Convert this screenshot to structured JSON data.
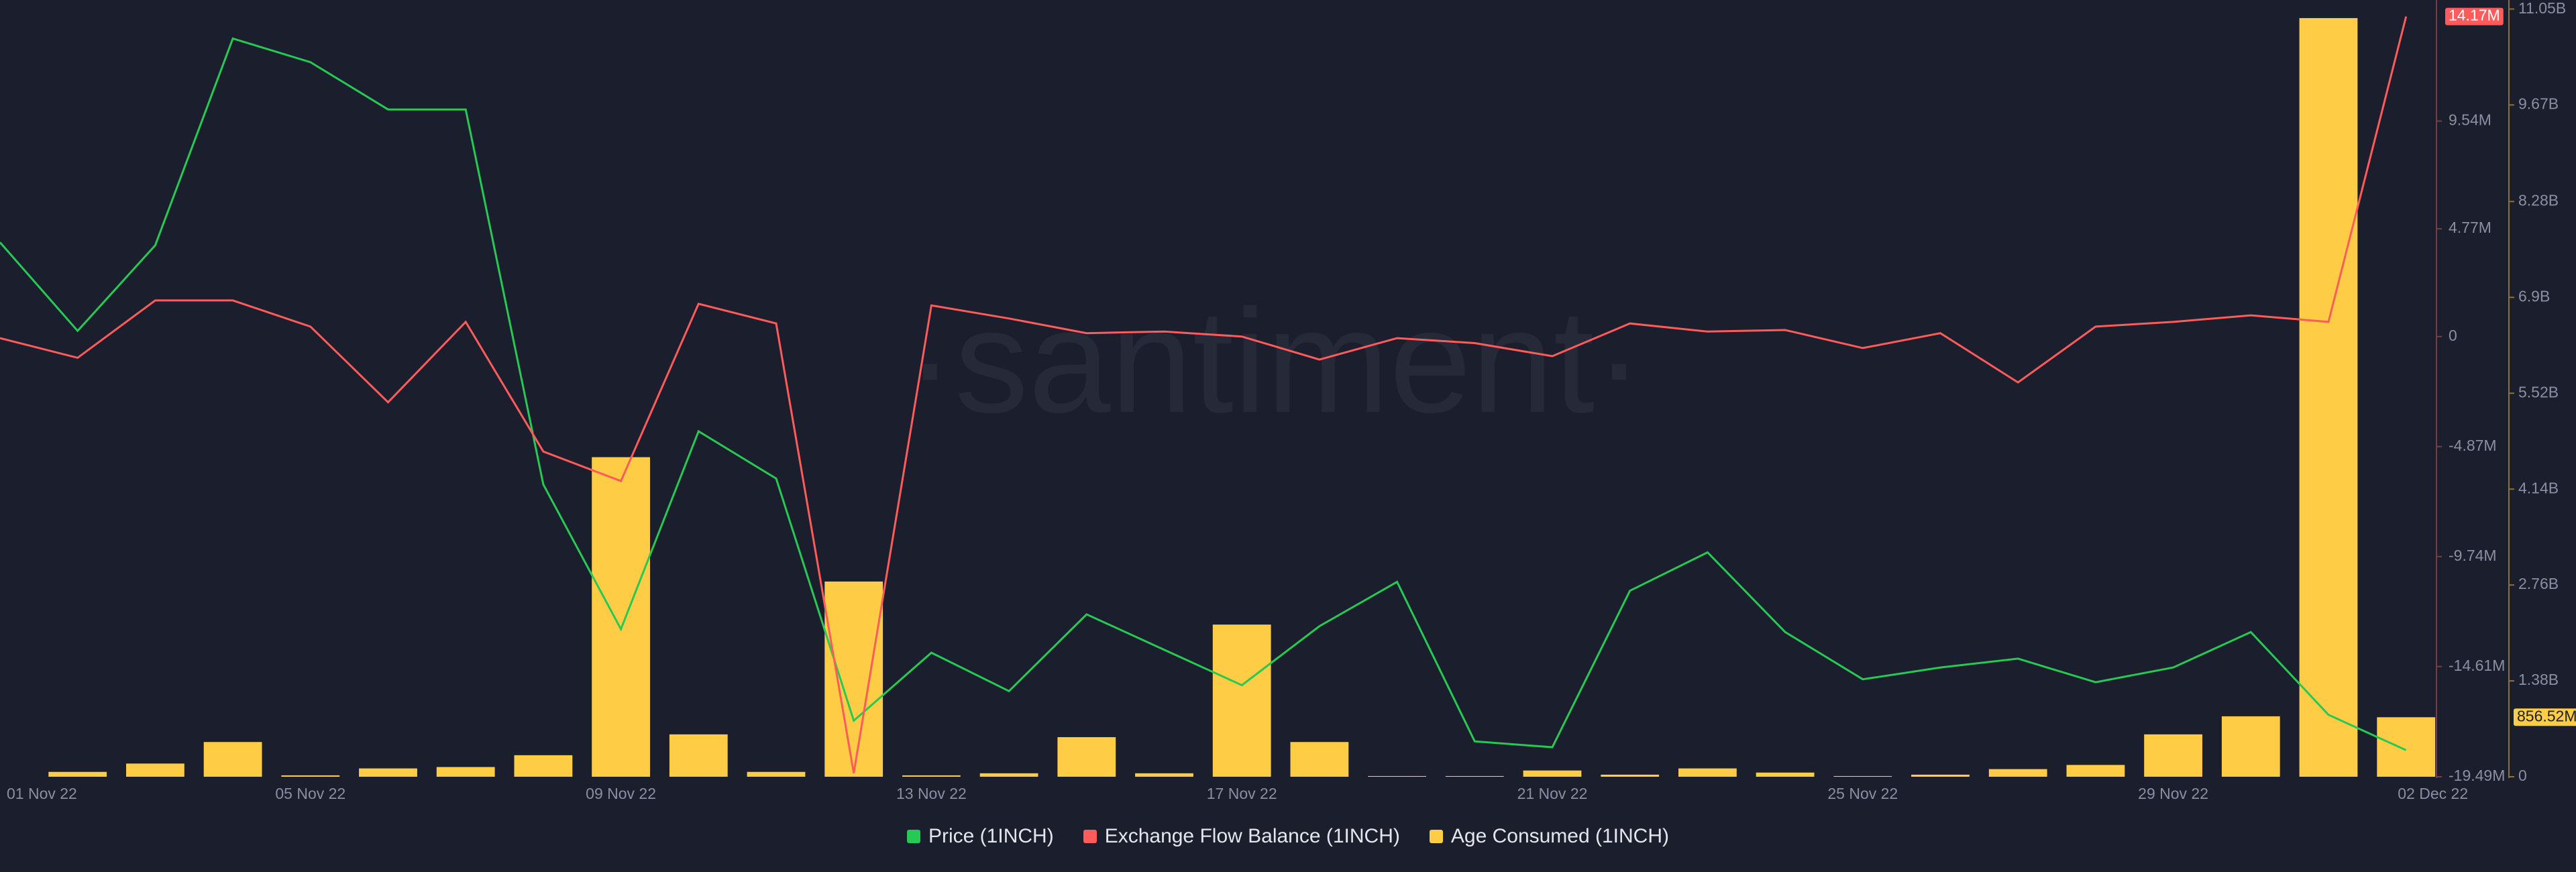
{
  "chart_data": {
    "type": "combo",
    "watermark": "·santiment·",
    "categories": [
      "01 Nov 22",
      null,
      null,
      null,
      "05 Nov 22",
      null,
      null,
      null,
      "09 Nov 22",
      null,
      null,
      null,
      "13 Nov 22",
      null,
      null,
      null,
      "17 Nov 22",
      null,
      null,
      null,
      "21 Nov 22",
      null,
      null,
      null,
      "25 Nov 22",
      null,
      null,
      null,
      "29 Nov 22",
      null,
      null,
      "02 Dec 22"
    ],
    "series": [
      {
        "name": "Price (1INCH)",
        "type": "line",
        "axis": "y3",
        "color": "#26c953",
        "values": [
          0.561,
          0.531,
          0.56,
          0.63,
          0.622,
          0.606,
          0.606,
          0.479,
          0.43,
          0.497,
          0.481,
          0.399,
          0.422,
          0.409,
          0.435,
          0.423,
          0.411,
          0.431,
          0.446,
          0.392,
          0.39,
          0.443,
          0.456,
          0.429,
          0.413,
          0.417,
          0.42,
          0.412,
          0.417,
          0.429,
          0.401,
          0.389
        ]
      },
      {
        "name": "Exchange Flow Balance (1INCH)",
        "type": "line",
        "axis": "y",
        "color": "#ff5b5b",
        "values": [
          -70000,
          -940000,
          1600000,
          1600000,
          440000,
          -2910000,
          650000,
          -5090000,
          -6400000,
          1450000,
          580000,
          -19330000,
          1380000,
          800000,
          150000,
          220000,
          0,
          -1020000,
          -70000,
          -290000,
          -870000,
          580000,
          220000,
          290000,
          -510000,
          150000,
          -2030000,
          440000,
          650000,
          940000,
          650000,
          14170000
        ],
        "value_labels": [
          null,
          null,
          null,
          null,
          null,
          null,
          null,
          null,
          null,
          null,
          null,
          null,
          null,
          null,
          null,
          null,
          null,
          null,
          null,
          null,
          null,
          null,
          null,
          null,
          null,
          null,
          null,
          null,
          null,
          null,
          null,
          "14.17M"
        ]
      },
      {
        "name": "Age Consumed (1INCH)",
        "type": "bar",
        "axis": "y2",
        "color": "#ffcd45",
        "values": [
          0,
          70000000,
          190000000,
          500000000,
          20000000,
          120000000,
          140000000,
          310000000,
          4600000000,
          610000000,
          70000000,
          2810000000,
          20000000,
          50000000,
          570000000,
          50000000,
          2190000000,
          500000000,
          10000000,
          10000000,
          90000000,
          30000000,
          120000000,
          60000000,
          10000000,
          30000000,
          110000000,
          170000000,
          610000000,
          870000000,
          10920000000,
          856520000
        ],
        "value_labels": [
          null,
          null,
          null,
          null,
          null,
          null,
          null,
          null,
          null,
          null,
          null,
          null,
          null,
          null,
          null,
          null,
          null,
          null,
          null,
          null,
          null,
          null,
          null,
          null,
          null,
          null,
          null,
          null,
          null,
          null,
          null,
          "856.52M"
        ]
      }
    ],
    "ylim": [
      -19490000,
      14500000
    ],
    "yticks": [
      {
        "value": 9540000,
        "label": "9.54M"
      },
      {
        "value": 4770000,
        "label": "4.77M"
      },
      0,
      {
        "value": -4870000,
        "label": "-4.87M"
      },
      {
        "value": -9740000,
        "label": "-9.74M"
      },
      {
        "value": -14610000,
        "label": "-14.61M"
      },
      {
        "value": -19490000,
        "label": "-19.49M"
      }
    ],
    "y2lim": [
      0,
      11050000000
    ],
    "y2ticks": [
      0,
      {
        "value": 1380000000,
        "label": "1.38B"
      },
      {
        "value": 2760000000,
        "label": "2.76B"
      },
      {
        "value": 4140000000,
        "label": "4.14B"
      },
      {
        "value": 5520000000,
        "label": "5.52B"
      },
      {
        "value": 6900000000,
        "label": "6.9B"
      },
      {
        "value": 8280000000,
        "label": "8.28B"
      },
      {
        "value": 9670000000,
        "label": "9.67B"
      },
      {
        "value": 11050000000,
        "label": "11.05B"
      }
    ],
    "y3lim": [
      0.38,
      0.64
    ]
  }
}
